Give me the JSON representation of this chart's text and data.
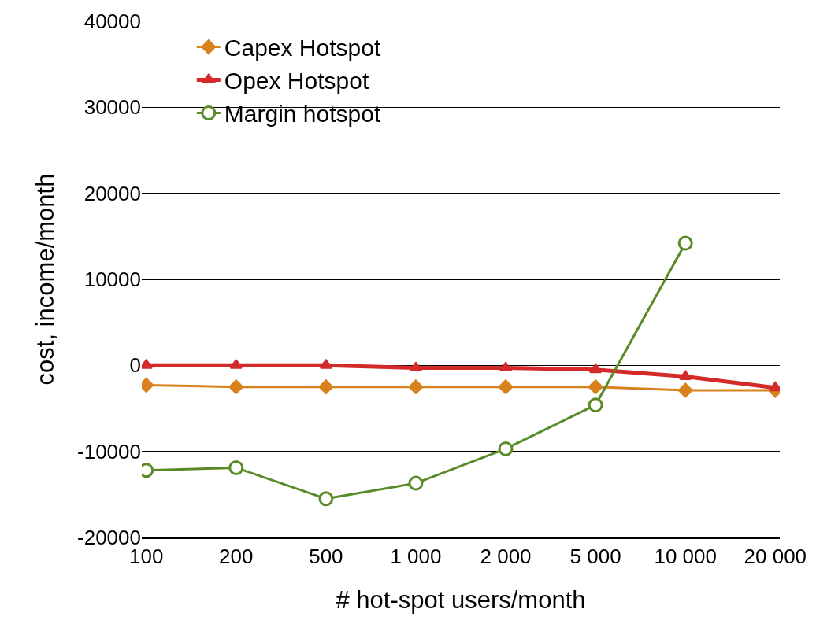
{
  "chart_data": {
    "type": "line",
    "xlabel": "# hot-spot users/month",
    "ylabel": "cost, income/month",
    "categories": [
      "100",
      "200",
      "500",
      "1 000",
      "2 000",
      "5 000",
      "10 000",
      "20 000"
    ],
    "series": [
      {
        "name": "Capex Hotspot",
        "color": "#d8821e",
        "marker": "diamond",
        "values": [
          -2300,
          -2500,
          -2500,
          -2500,
          -2500,
          -2500,
          -2900,
          -2900
        ]
      },
      {
        "name": "Opex Hotspot",
        "color": "#d42a2a",
        "marker": "triangle",
        "values": [
          0,
          0,
          0,
          -300,
          -300,
          -500,
          -1300,
          -2600
        ]
      },
      {
        "name": "Margin hotspot",
        "color": "#5a8a28",
        "marker": "circle",
        "values": [
          -12200,
          -11900,
          -15500,
          -13700,
          -9700,
          -4600,
          14200,
          null
        ]
      }
    ],
    "ylim": [
      -20000,
      40000
    ],
    "yticks": [
      -20000,
      -10000,
      0,
      10000,
      20000,
      30000,
      40000
    ],
    "grid": "y",
    "legend": "top left"
  }
}
